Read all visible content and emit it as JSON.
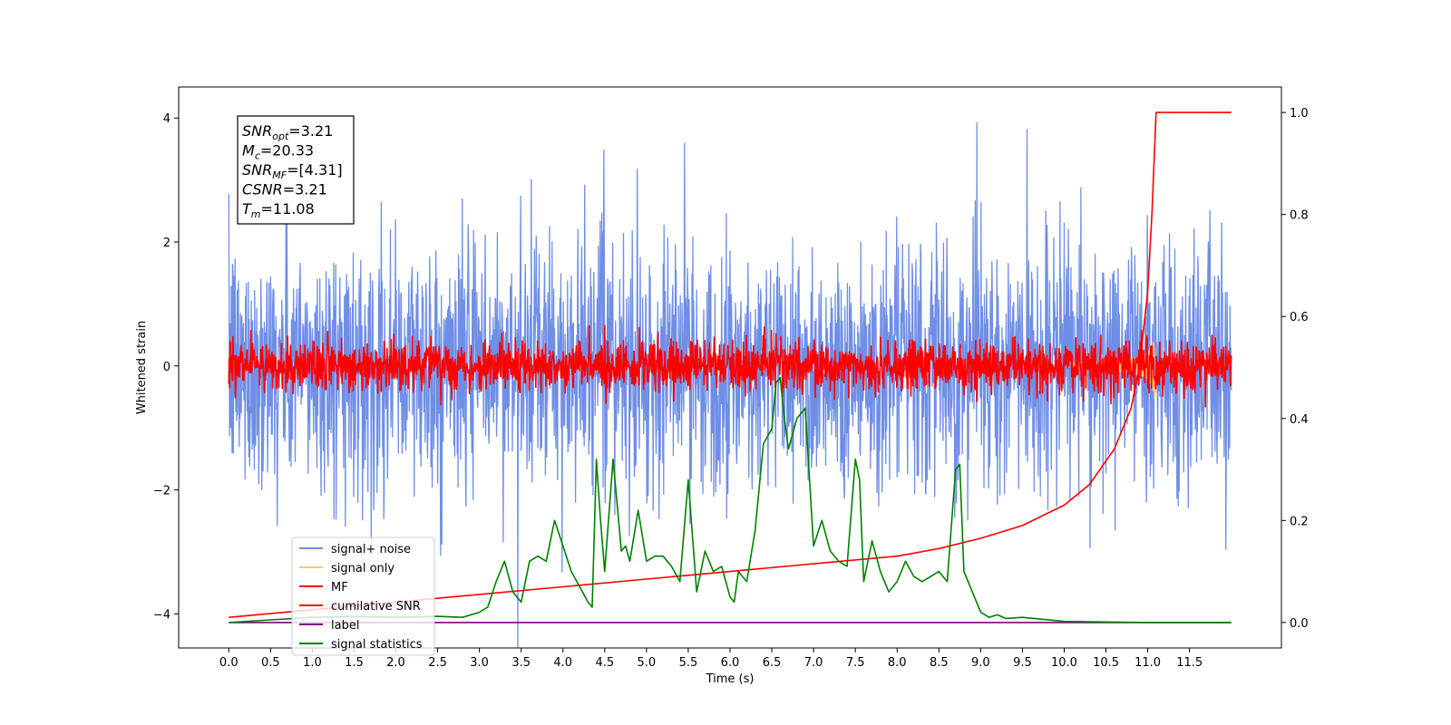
{
  "chart_data": {
    "type": "line",
    "xlabel": "Time (s)",
    "ylabel": "Whitened strain",
    "xlim": [
      -0.6,
      12.6
    ],
    "ylim": [
      -4.55,
      4.5
    ],
    "y2lim": [
      -0.05,
      1.05
    ],
    "x_ticks": [
      "0.0",
      "0.5",
      "1.0",
      "1.5",
      "2.0",
      "2.5",
      "3.0",
      "3.5",
      "4.0",
      "4.5",
      "5.0",
      "5.5",
      "6.0",
      "6.5",
      "7.0",
      "7.5",
      "8.0",
      "8.5",
      "9.0",
      "9.5",
      "10.0",
      "10.5",
      "11.0",
      "11.5"
    ],
    "y_ticks": [
      "4",
      "2",
      "0",
      "−2",
      "−4"
    ],
    "y2_ticks": [
      "1.0",
      "0.8",
      "0.6",
      "0.4",
      "0.2",
      "0.0"
    ],
    "annotation": {
      "snr_opt": {
        "sym": "SNR",
        "sub": "opt",
        "val": "=3.21"
      },
      "mc": {
        "sym": "M",
        "sub": "c",
        "val": "=20.33"
      },
      "snr_mf": {
        "sym": "SNR",
        "sub": "MF",
        "val": "=[4.31]"
      },
      "csnr": {
        "sym": "CSNR",
        "sub": "",
        "val": "=3.21"
      },
      "tm": {
        "sym": "T",
        "sub": "m",
        "val": "=11.08"
      }
    },
    "series": [
      {
        "name": "signal+ noise",
        "color": "#6f8ee6",
        "axis": "left",
        "kind": "noise",
        "amplitude": 1.0,
        "range": [
          0,
          12
        ]
      },
      {
        "name": "signal only",
        "color": "#f5c97a",
        "axis": "left",
        "kind": "chirp",
        "merger_time": 11.08,
        "peak": 0.6
      },
      {
        "name": "MF",
        "color": "#ff0000",
        "axis": "left",
        "kind": "noise",
        "amplitude": 0.2,
        "range": [
          0,
          12
        ]
      },
      {
        "name": "cumilative SNR",
        "color": "#ff0000",
        "axis": "right",
        "x": [
          0,
          1,
          2,
          3,
          4,
          5,
          6,
          7,
          8,
          8.5,
          9,
          9.5,
          10,
          10.3,
          10.6,
          10.8,
          10.9,
          11.0,
          11.05,
          11.1,
          11.5,
          12.0
        ],
        "y": [
          0.01,
          0.025,
          0.04,
          0.055,
          0.07,
          0.085,
          0.1,
          0.115,
          0.13,
          0.145,
          0.165,
          0.19,
          0.23,
          0.27,
          0.34,
          0.42,
          0.5,
          0.65,
          0.8,
          1.0,
          1.0,
          1.0
        ]
      },
      {
        "name": "label",
        "color": "#800080",
        "axis": "right",
        "x": [
          0,
          12
        ],
        "y": [
          0,
          0
        ]
      },
      {
        "name": "signal statistics",
        "color": "#008000",
        "axis": "right",
        "x": [
          0,
          0.5,
          0.8,
          1.0,
          1.5,
          2.0,
          2.5,
          2.8,
          3.0,
          3.1,
          3.2,
          3.3,
          3.4,
          3.5,
          3.6,
          3.7,
          3.8,
          3.9,
          4.0,
          4.1,
          4.2,
          4.3,
          4.35,
          4.4,
          4.45,
          4.5,
          4.6,
          4.7,
          4.75,
          4.8,
          4.9,
          5.0,
          5.1,
          5.2,
          5.3,
          5.4,
          5.5,
          5.6,
          5.7,
          5.8,
          5.9,
          6.0,
          6.05,
          6.1,
          6.2,
          6.3,
          6.4,
          6.5,
          6.55,
          6.6,
          6.65,
          6.7,
          6.8,
          6.9,
          7.0,
          7.1,
          7.2,
          7.3,
          7.4,
          7.5,
          7.55,
          7.6,
          7.7,
          7.8,
          7.9,
          8.0,
          8.1,
          8.2,
          8.3,
          8.4,
          8.5,
          8.6,
          8.7,
          8.75,
          8.8,
          8.9,
          9.0,
          9.1,
          9.2,
          9.3,
          9.5,
          10.0,
          10.5,
          11.0,
          12.0
        ],
        "y": [
          0.0,
          0.005,
          0.008,
          0.01,
          0.012,
          0.01,
          0.012,
          0.01,
          0.02,
          0.03,
          0.08,
          0.12,
          0.06,
          0.04,
          0.12,
          0.13,
          0.12,
          0.2,
          0.15,
          0.1,
          0.07,
          0.04,
          0.03,
          0.32,
          0.2,
          0.1,
          0.32,
          0.14,
          0.15,
          0.12,
          0.22,
          0.12,
          0.13,
          0.13,
          0.11,
          0.08,
          0.28,
          0.06,
          0.14,
          0.1,
          0.11,
          0.05,
          0.04,
          0.1,
          0.08,
          0.18,
          0.35,
          0.38,
          0.47,
          0.48,
          0.4,
          0.34,
          0.4,
          0.42,
          0.15,
          0.2,
          0.14,
          0.12,
          0.11,
          0.32,
          0.28,
          0.08,
          0.16,
          0.1,
          0.06,
          0.08,
          0.12,
          0.09,
          0.08,
          0.09,
          0.1,
          0.08,
          0.3,
          0.31,
          0.1,
          0.06,
          0.02,
          0.01,
          0.015,
          0.008,
          0.01,
          0.002,
          0.001,
          0.0,
          0.0
        ]
      }
    ]
  },
  "legend": {
    "entries": [
      {
        "label": "signal+ noise",
        "color": "#6f8ee6"
      },
      {
        "label": "signal only",
        "color": "#f5c97a"
      },
      {
        "label": "MF",
        "color": "#ff0000"
      },
      {
        "label": "cumilative SNR",
        "color": "#ff0000"
      },
      {
        "label": "label",
        "color": "#800080"
      },
      {
        "label": "signal statistics",
        "color": "#008000"
      }
    ]
  }
}
